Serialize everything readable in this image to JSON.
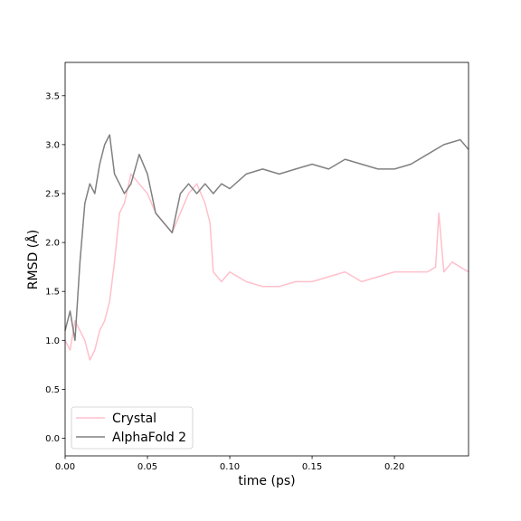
{
  "chart_data": {
    "type": "line",
    "title": "",
    "xlabel": "time (ps)",
    "ylabel": "RMSD (Å)",
    "xlim": [
      0.0,
      0.245
    ],
    "ylim": [
      -0.18,
      3.84
    ],
    "xticks": [
      0.0,
      0.05,
      0.1,
      0.15,
      0.2
    ],
    "xtick_labels": [
      "0.00",
      "0.05",
      "0.10",
      "0.15",
      "0.20"
    ],
    "yticks": [
      0.0,
      0.5,
      1.0,
      1.5,
      2.0,
      2.5,
      3.0,
      3.5
    ],
    "ytick_labels": [
      "0.0",
      "0.5",
      "1.0",
      "1.5",
      "2.0",
      "2.5",
      "3.0",
      "3.5"
    ],
    "grid": false,
    "legend_position": "bottom-left",
    "series": [
      {
        "name": "Crystal",
        "color": "#ffc0cb",
        "x": [
          0.0,
          0.003,
          0.006,
          0.009,
          0.012,
          0.015,
          0.018,
          0.021,
          0.024,
          0.027,
          0.03,
          0.033,
          0.036,
          0.04,
          0.045,
          0.05,
          0.055,
          0.06,
          0.065,
          0.07,
          0.075,
          0.08,
          0.085,
          0.088,
          0.09,
          0.095,
          0.1,
          0.11,
          0.12,
          0.13,
          0.14,
          0.15,
          0.16,
          0.17,
          0.18,
          0.19,
          0.2,
          0.21,
          0.22,
          0.225,
          0.227,
          0.23,
          0.235,
          0.24,
          0.245
        ],
        "y": [
          1.0,
          0.9,
          1.2,
          1.1,
          1.0,
          0.8,
          0.9,
          1.1,
          1.2,
          1.4,
          1.8,
          2.3,
          2.4,
          2.7,
          2.6,
          2.5,
          2.3,
          2.2,
          2.1,
          2.3,
          2.5,
          2.6,
          2.4,
          2.2,
          1.7,
          1.6,
          1.7,
          1.6,
          1.55,
          1.55,
          1.6,
          1.6,
          1.65,
          1.7,
          1.6,
          1.65,
          1.7,
          1.7,
          1.7,
          1.75,
          2.3,
          1.7,
          1.8,
          1.75,
          1.7
        ]
      },
      {
        "name": "AlphaFold 2",
        "color": "#808080",
        "x": [
          0.0,
          0.003,
          0.006,
          0.009,
          0.012,
          0.015,
          0.018,
          0.021,
          0.024,
          0.027,
          0.03,
          0.033,
          0.036,
          0.04,
          0.045,
          0.05,
          0.055,
          0.06,
          0.065,
          0.07,
          0.075,
          0.08,
          0.085,
          0.09,
          0.095,
          0.1,
          0.11,
          0.12,
          0.13,
          0.14,
          0.15,
          0.16,
          0.17,
          0.18,
          0.19,
          0.2,
          0.21,
          0.22,
          0.23,
          0.24,
          0.245
        ],
        "y": [
          1.1,
          1.3,
          1.0,
          1.8,
          2.4,
          2.6,
          2.5,
          2.8,
          3.0,
          3.1,
          2.7,
          2.6,
          2.5,
          2.6,
          2.9,
          2.7,
          2.3,
          2.2,
          2.1,
          2.5,
          2.6,
          2.5,
          2.6,
          2.5,
          2.6,
          2.55,
          2.7,
          2.75,
          2.7,
          2.75,
          2.8,
          2.75,
          2.85,
          2.8,
          2.75,
          2.75,
          2.8,
          2.9,
          3.0,
          3.05,
          2.95
        ]
      }
    ]
  }
}
